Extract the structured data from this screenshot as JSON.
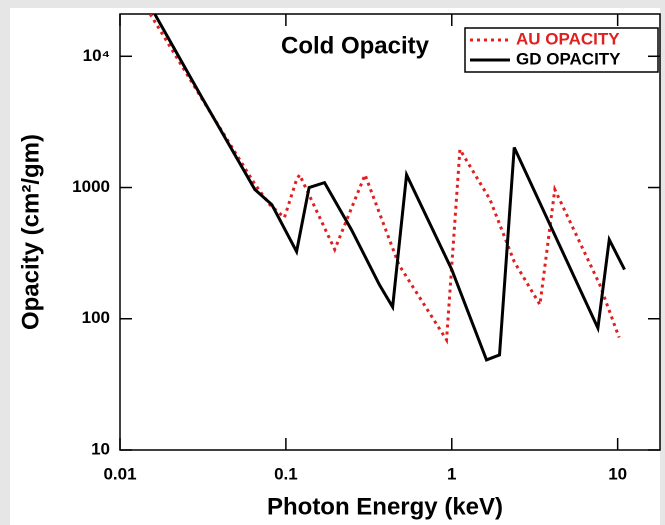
{
  "chart_data": {
    "type": "line",
    "title": "Cold Opacity",
    "x_label": "Photon Energy (keV)",
    "y_label": "Opacity (cm²/gm)",
    "xlog": true,
    "ylog": true,
    "xlim": [
      0.01,
      18
    ],
    "ylim": [
      10,
      21000
    ],
    "xticks": [
      0.01,
      0.1,
      1,
      10
    ],
    "yticks": [
      10,
      100,
      1000,
      {
        "value": 10000,
        "label": "10⁴"
      }
    ],
    "series": [
      {
        "name": "AU OPACITY",
        "color": "#e02020",
        "dash": true,
        "x": [
          0.0152,
          0.0304,
          0.065,
          0.08,
          0.098,
          0.116,
          0.121,
          0.197,
          0.3,
          0.48,
          0.93,
          1.12,
          1.7,
          2.38,
          3.4,
          4.18,
          7.8,
          10.2
        ],
        "values": [
          21000,
          5000,
          1060,
          740,
          590,
          1150,
          1250,
          337,
          1250,
          258,
          69,
          1950,
          810,
          272,
          128,
          966,
          182,
          72
        ]
      },
      {
        "name": "GD OPACITY",
        "color": "#000000",
        "dash": false,
        "x": [
          0.0162,
          0.0304,
          0.065,
          0.0823,
          0.116,
          0.138,
          0.171,
          0.249,
          0.366,
          0.44,
          0.534,
          1.0,
          1.62,
          1.94,
          2.38,
          7.6,
          8.9,
          11.0
        ],
        "values": [
          21000,
          5130,
          966,
          740,
          325,
          1000,
          1090,
          475,
          182,
          123,
          1250,
          237,
          48.6,
          53,
          2020,
          85,
          401,
          237
        ]
      }
    ]
  }
}
